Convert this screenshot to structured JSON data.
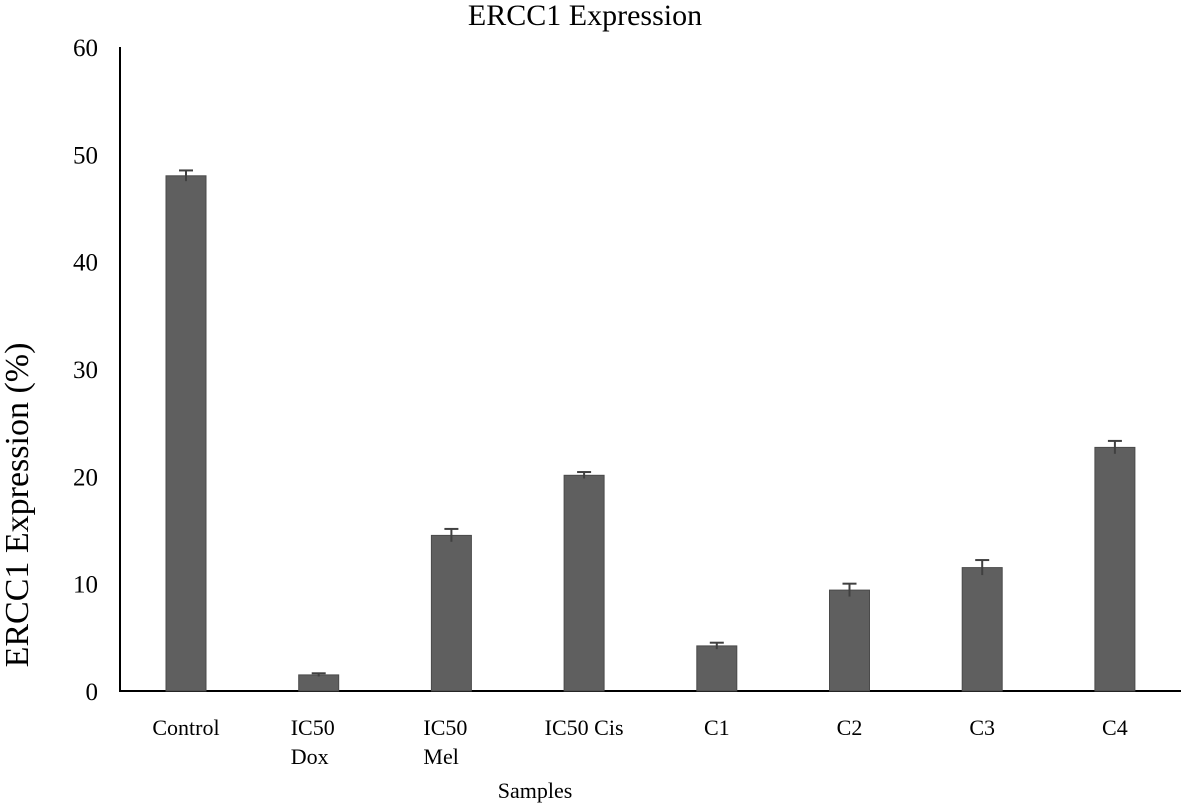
{
  "chart_data": {
    "type": "bar",
    "title": "ERCC1 Expression",
    "xlabel": "Samples",
    "ylabel": "ERCC1 Expression (%)",
    "ylim": [
      0,
      60
    ],
    "yticks": [
      0,
      10,
      20,
      30,
      40,
      50,
      60
    ],
    "ytick_labels": [
      "0",
      "10",
      "20",
      "30",
      "40",
      "50",
      "60"
    ],
    "categories": [
      [
        "Control"
      ],
      [
        "IC50",
        "Dox"
      ],
      [
        "IC50",
        "Mel"
      ],
      [
        "IC50 Cis"
      ],
      [
        "C1"
      ],
      [
        "C2"
      ],
      [
        "C3"
      ],
      [
        "C4"
      ]
    ],
    "values": [
      48.0,
      1.5,
      14.5,
      20.1,
      4.2,
      9.4,
      11.5,
      22.7
    ],
    "errors": [
      0.5,
      0.15,
      0.6,
      0.3,
      0.3,
      0.6,
      0.7,
      0.6
    ],
    "bar_color": "#5f5f5f",
    "error_bar_color": "#404040",
    "axis_color": "#000000",
    "grid": false,
    "legend": "none"
  }
}
